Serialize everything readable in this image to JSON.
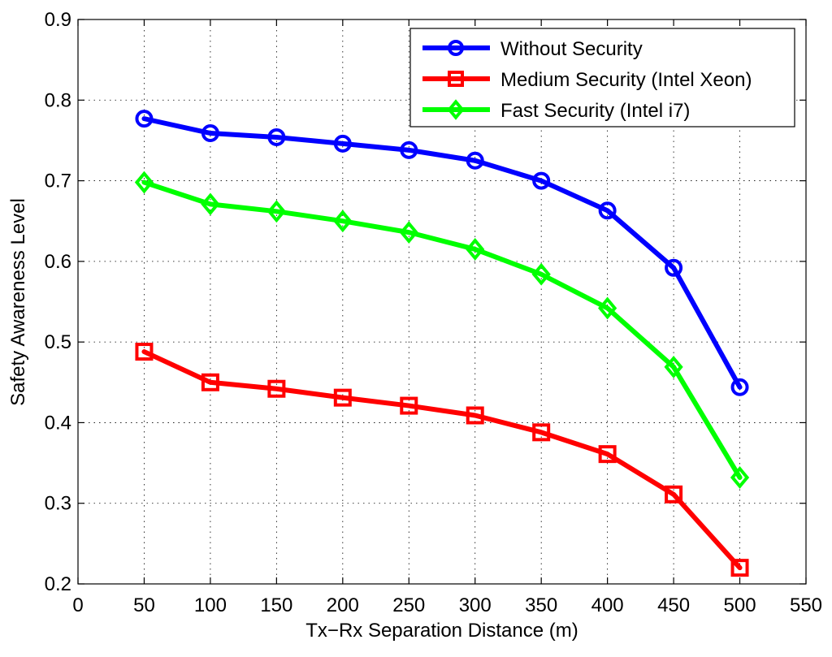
{
  "chart_data": {
    "type": "line",
    "title": "",
    "xlabel": "Tx−Rx Separation Distance (m)",
    "ylabel": "Safety Awareness Level",
    "xlim": [
      0,
      550
    ],
    "ylim": [
      0.2,
      0.9
    ],
    "xticks": [
      0,
      50,
      100,
      150,
      200,
      250,
      300,
      350,
      400,
      450,
      500,
      550
    ],
    "yticks": [
      0.2,
      0.3,
      0.4,
      0.5,
      0.6,
      0.7,
      0.8,
      0.9
    ],
    "xtick_labels": [
      "0",
      "50",
      "100",
      "150",
      "200",
      "250",
      "300",
      "350",
      "400",
      "450",
      "500",
      "550"
    ],
    "ytick_labels": [
      "0.2",
      "0.3",
      "0.4",
      "0.5",
      "0.6",
      "0.7",
      "0.8",
      "0.9"
    ],
    "grid": true,
    "legend_position": "top-right",
    "x": [
      50,
      100,
      150,
      200,
      250,
      300,
      350,
      400,
      450,
      500
    ],
    "series": [
      {
        "name": "Without Security",
        "color": "#0000ff",
        "marker": "circle",
        "values": [
          0.777,
          0.759,
          0.754,
          0.746,
          0.738,
          0.725,
          0.7,
          0.663,
          0.592,
          0.444
        ]
      },
      {
        "name": "Medium Security (Intel Xeon)",
        "color": "#ff0000",
        "marker": "square",
        "values": [
          0.488,
          0.45,
          0.442,
          0.431,
          0.421,
          0.409,
          0.388,
          0.361,
          0.311,
          0.22
        ]
      },
      {
        "name": "Fast Security (Intel i7)",
        "color": "#00ff00",
        "marker": "diamond",
        "values": [
          0.698,
          0.671,
          0.662,
          0.65,
          0.636,
          0.615,
          0.584,
          0.542,
          0.469,
          0.332
        ]
      }
    ]
  }
}
